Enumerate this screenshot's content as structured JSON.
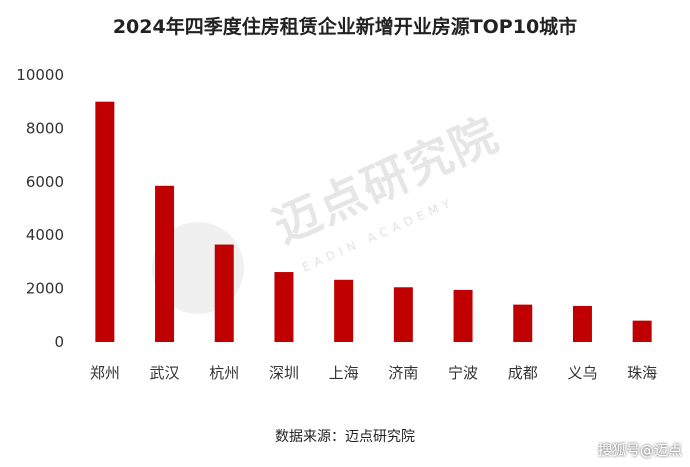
{
  "chart_data": {
    "type": "bar",
    "title": "2024年四季度住房租赁企业新增开业房源TOP10城市",
    "categories": [
      "郑州",
      "武汉",
      "杭州",
      "深圳",
      "上海",
      "济南",
      "宁波",
      "成都",
      "义乌",
      "珠海"
    ],
    "values": [
      9000,
      5850,
      3650,
      2620,
      2330,
      2050,
      1950,
      1400,
      1350,
      800
    ],
    "ylim": [
      0,
      10000
    ],
    "yticks": [
      0,
      2000,
      4000,
      6000,
      8000,
      10000
    ],
    "grid": false,
    "bar_color": "#c00000"
  },
  "source_note": "数据来源：迈点研究院",
  "watermark": {
    "text": "迈点研究院",
    "subtext": "EADIN ACADEMY"
  },
  "platform_mark": "搜狐号@迈点"
}
